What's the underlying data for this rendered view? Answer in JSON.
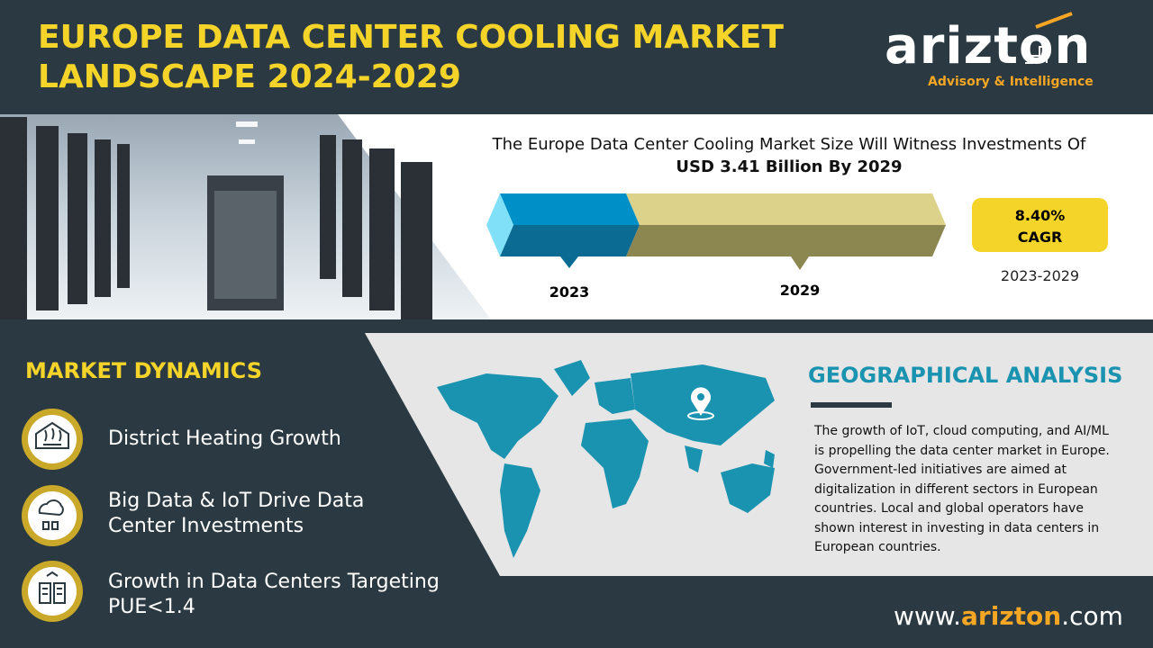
{
  "header": {
    "title_lines": [
      "EUROPE DATA CENTER COOLING MARKET",
      "LANDSCAPE 2024-2029"
    ]
  },
  "logo": {
    "name": "arizton",
    "tagline": "Advisory & Intelligence"
  },
  "investment": {
    "headline": "The Europe Data Center Cooling Market Size Will Witness Investments Of",
    "highlight": "USD 3.41 Billion By 2029",
    "years": [
      "2023",
      "2029"
    ]
  },
  "cagr": {
    "value": "8.40%",
    "label": "CAGR",
    "period": "2023-2029"
  },
  "dynamics": {
    "title": "MARKET DYNAMICS",
    "items": [
      "District Heating Growth",
      "Big Data & IoT Drive Data Center Investments",
      "Growth in Data Centers Targeting PUE<1.4"
    ]
  },
  "geo": {
    "title": "GEOGRAPHICAL ANALYSIS",
    "text": "The growth of IoT, cloud computing, and AI/ML is propelling the data center market in Europe. Government-led initiatives are aimed at digitalization in different sectors in European countries. Local and global operators have shown interest in investing in data centers in European countries."
  },
  "footer": {
    "prefix": "www.",
    "brand": "arizton",
    "suffix": ".com"
  }
}
